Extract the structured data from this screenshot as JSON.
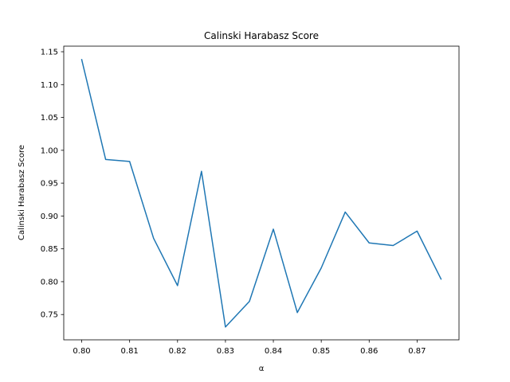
{
  "chart_data": {
    "type": "line",
    "title": "Calinski Harabasz Score",
    "xlabel": "α",
    "ylabel": "Calinski Harabasz Score",
    "xlim": [
      0.79625,
      0.87875
    ],
    "ylim": [
      0.7115,
      1.1585
    ],
    "xticks": [
      0.8,
      0.81,
      0.82,
      0.83,
      0.84,
      0.85,
      0.86,
      0.87
    ],
    "xtick_labels": [
      "0.80",
      "0.81",
      "0.82",
      "0.83",
      "0.84",
      "0.85",
      "0.86",
      "0.87"
    ],
    "yticks": [
      0.75,
      0.8,
      0.85,
      0.9,
      0.95,
      1.0,
      1.05,
      1.1,
      1.15
    ],
    "ytick_labels": [
      "0.75",
      "0.80",
      "0.85",
      "0.90",
      "0.95",
      "1.00",
      "1.05",
      "1.10",
      "1.15"
    ],
    "grid": false,
    "line_color": "#1f77b4",
    "series": [
      {
        "x": [
          0.8,
          0.805,
          0.81,
          0.815,
          0.82,
          0.825,
          0.83,
          0.835,
          0.84,
          0.845,
          0.85,
          0.855,
          0.86,
          0.865,
          0.87,
          0.875
        ],
        "values": [
          1.138,
          0.986,
          0.983,
          0.866,
          0.794,
          0.968,
          0.731,
          0.77,
          0.88,
          0.753,
          0.821,
          0.906,
          0.859,
          0.855,
          0.877,
          0.804
        ]
      }
    ]
  }
}
